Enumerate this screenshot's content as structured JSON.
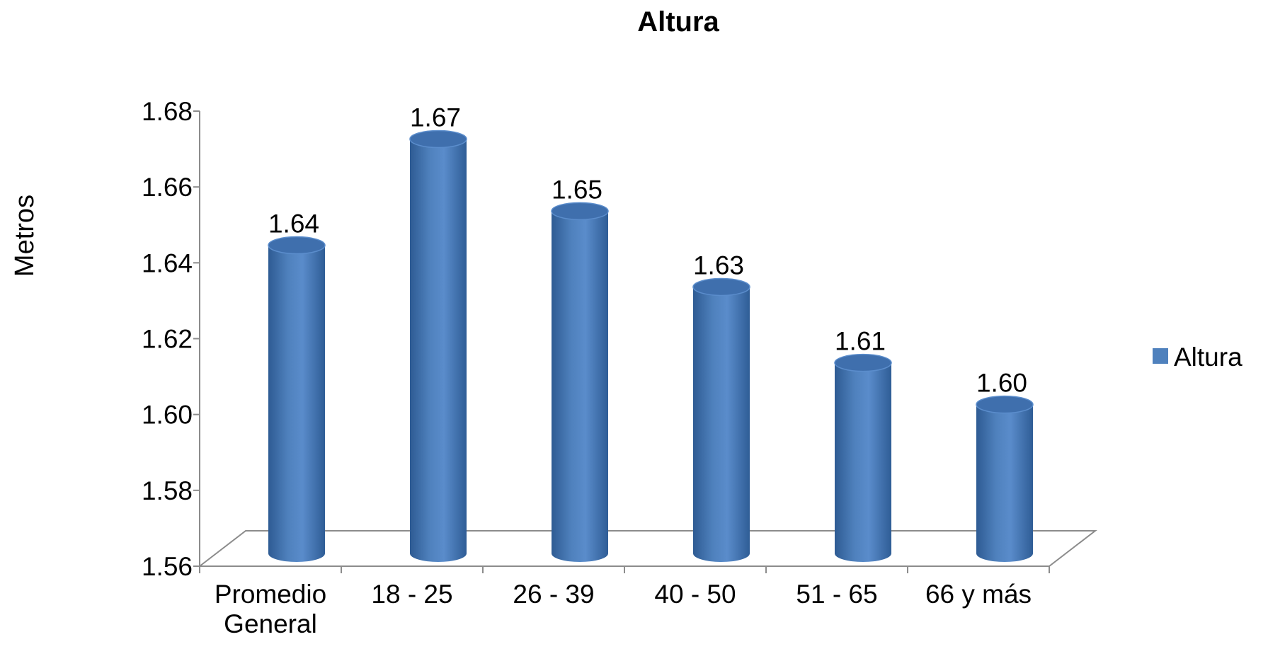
{
  "chart_data": {
    "type": "bar",
    "title": "Altura",
    "xlabel": "",
    "ylabel": "Metros",
    "ylim": [
      1.56,
      1.68
    ],
    "yticks": [
      "1.56",
      "1.58",
      "1.60",
      "1.62",
      "1.64",
      "1.66",
      "1.68"
    ],
    "categories": [
      [
        "Promedio",
        "General"
      ],
      [
        "18 - 25"
      ],
      [
        "26 - 39"
      ],
      [
        "40 - 50"
      ],
      [
        "51 - 65"
      ],
      [
        "66 y más"
      ]
    ],
    "series": [
      {
        "name": "Altura",
        "color": "#4F81BD",
        "values": [
          1.645,
          1.673,
          1.654,
          1.634,
          1.614,
          1.603
        ],
        "labels": [
          "1.64",
          "1.67",
          "1.65",
          "1.63",
          "1.61",
          "1.60"
        ]
      }
    ],
    "legend_position": "right",
    "grid": false,
    "style": "3d-cylinder"
  }
}
